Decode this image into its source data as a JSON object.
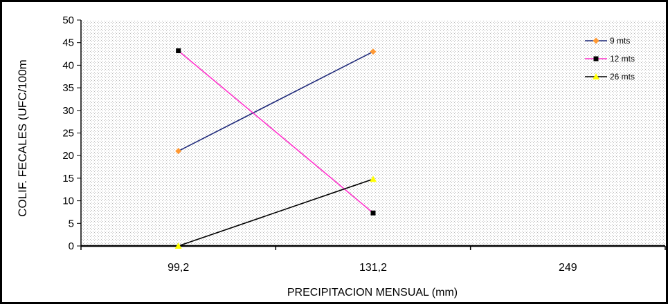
{
  "chart_data": {
    "type": "line",
    "xlabel": "PRECIPITACION MENSUAL (mm)",
    "ylabel": "COLIF.  FECALES  (UFC/100m",
    "categories": [
      "99,2",
      "131,2",
      "249"
    ],
    "ylim": [
      0,
      50
    ],
    "yticks": [
      0,
      5,
      10,
      15,
      20,
      25,
      30,
      35,
      40,
      45,
      50
    ],
    "grid": false,
    "legend_position": "top-right",
    "series": [
      {
        "name": "9 mts",
        "values": [
          21,
          43,
          null
        ],
        "line_color": "#1f2a7a",
        "marker_color": "#ff9933",
        "marker": "diamond"
      },
      {
        "name": "12 mts",
        "values": [
          43.2,
          7.3,
          null
        ],
        "line_color": "#ff33cc",
        "marker_color": "#000000",
        "marker": "square"
      },
      {
        "name": "26 mts",
        "values": [
          0,
          14.8,
          null
        ],
        "line_color": "#000000",
        "marker_color": "#ffff00",
        "marker": "triangle"
      }
    ]
  }
}
